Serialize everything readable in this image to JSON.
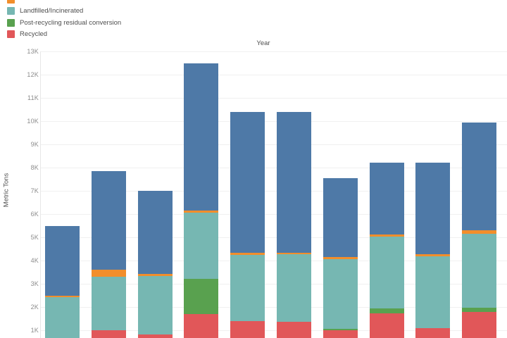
{
  "legend": {
    "items": [
      {
        "label": "",
        "color": "#f28e2b",
        "cropped": true
      },
      {
        "label": "Landfilled/Incinerated",
        "color": "#76b7b2",
        "cropped": false
      },
      {
        "label": "Post-recycling residual conversion",
        "color": "#59a14f",
        "cropped": false
      },
      {
        "label": "Recycled",
        "color": "#e15759",
        "cropped": false
      }
    ]
  },
  "chart_data": {
    "type": "bar",
    "stacked": true,
    "title": "Year",
    "xlabel": "",
    "ylabel": "Metric Tons",
    "y_unit": "K (thousand metric tons)",
    "y_ticks": [
      "13K",
      "12K",
      "11K",
      "10K",
      "9K",
      "8K",
      "7K",
      "6K",
      "5K",
      "4K",
      "3K",
      "2K",
      "1K"
    ],
    "y_tick_values": [
      13,
      12,
      11,
      10,
      9,
      8,
      7,
      6,
      5,
      4,
      3,
      2,
      1
    ],
    "ylim_visible": [
      0.65,
      13
    ],
    "grid": "horizontal",
    "legend_position": "top-left",
    "colors": {
      "blue": "#4e79a7",
      "orange": "#f28e2b",
      "teal": "#76b7b2",
      "green": "#59a14f",
      "red": "#e15759"
    },
    "series_top_to_bottom": [
      {
        "key": "blue",
        "legend_label": null,
        "note": "legend entry cropped above view"
      },
      {
        "key": "orange",
        "legend_label": null,
        "note": "legend entry cropped; only swatch sliver visible"
      },
      {
        "key": "teal",
        "legend_label": "Landfilled/Incinerated"
      },
      {
        "key": "green",
        "legend_label": "Post-recycling residual conversion"
      },
      {
        "key": "red",
        "legend_label": "Recycled"
      }
    ],
    "note": "X-axis category labels and bar bottoms are cropped out of the visible screenshot; segment tops given in thousands of metric tons.",
    "bars": [
      {
        "index": 1,
        "tops": {
          "blue": 5.5,
          "orange": 2.48,
          "teal": 2.42,
          "green": null,
          "red": null
        }
      },
      {
        "index": 2,
        "tops": {
          "blue": 7.85,
          "orange": 3.62,
          "teal": 3.3,
          "green": null,
          "red": 1.0
        }
      },
      {
        "index": 3,
        "tops": {
          "blue": 7.0,
          "orange": 3.42,
          "teal": 3.33,
          "green": null,
          "red": 0.82
        }
      },
      {
        "index": 4,
        "tops": {
          "blue": 12.5,
          "orange": 6.16,
          "teal": 6.07,
          "green": 3.2,
          "red": 1.7
        }
      },
      {
        "index": 5,
        "tops": {
          "blue": 10.4,
          "orange": 4.33,
          "teal": 4.25,
          "green": null,
          "red": 1.4
        }
      },
      {
        "index": 6,
        "tops": {
          "blue": 10.4,
          "orange": 4.34,
          "teal": 4.26,
          "green": null,
          "red": 1.35
        }
      },
      {
        "index": 7,
        "tops": {
          "blue": 7.55,
          "orange": 4.15,
          "teal": 4.07,
          "green": 1.07,
          "red": 1.0
        }
      },
      {
        "index": 8,
        "tops": {
          "blue": 8.2,
          "orange": 5.12,
          "teal": 5.03,
          "green": 1.93,
          "red": 1.73
        }
      },
      {
        "index": 9,
        "tops": {
          "blue": 8.2,
          "orange": 4.26,
          "teal": 4.18,
          "green": null,
          "red": 1.1
        }
      },
      {
        "index": 10,
        "tops": {
          "blue": 9.95,
          "orange": 5.3,
          "teal": 5.16,
          "green": 1.96,
          "red": 1.78
        }
      }
    ]
  }
}
